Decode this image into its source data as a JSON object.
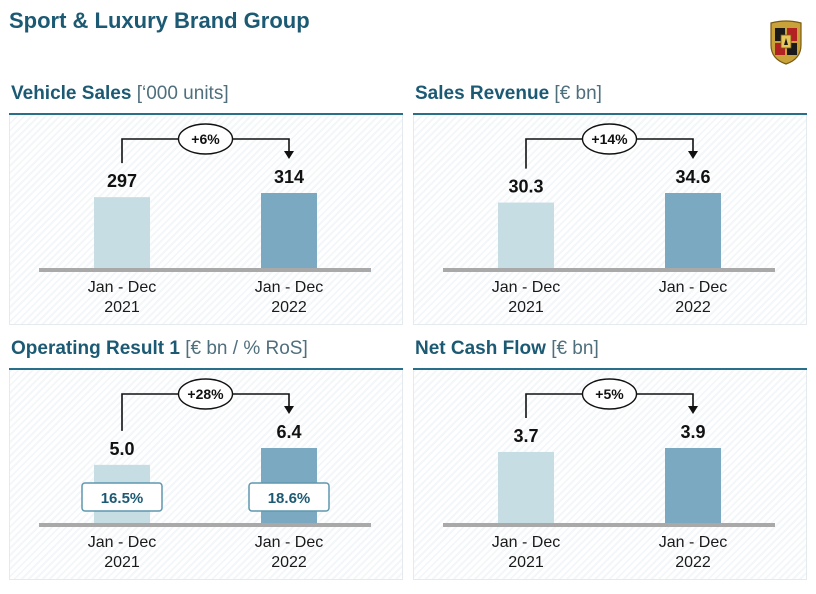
{
  "page": {
    "title": "Sport & Luxury Brand Group"
  },
  "colors": {
    "bar_2021": "#c6dde4",
    "bar_2022": "#7ba9c1",
    "title": "#1c5a74"
  },
  "panels": [
    {
      "title": "Vehicle Sales",
      "superscript": "",
      "unit": "[‘000 units]"
    },
    {
      "title": "Sales Revenue",
      "superscript": "",
      "unit": "[€ bn]"
    },
    {
      "title": "Operating Result",
      "superscript": "1",
      "unit": "[€ bn / % RoS]"
    },
    {
      "title": "Net Cash Flow",
      "superscript": "",
      "unit": "[€ bn]"
    }
  ],
  "chart_data": [
    {
      "type": "bar",
      "title": "Vehicle Sales",
      "unit": "[‘000 units]",
      "categories": [
        [
          "Jan - Dec",
          "2021"
        ],
        [
          "Jan - Dec",
          "2022"
        ]
      ],
      "values": [
        297,
        314
      ],
      "labels": [
        "297",
        "314"
      ],
      "delta": "+6%"
    },
    {
      "type": "bar",
      "title": "Sales Revenue",
      "unit": "[€ bn]",
      "categories": [
        [
          "Jan - Dec",
          "2021"
        ],
        [
          "Jan - Dec",
          "2022"
        ]
      ],
      "values": [
        30.3,
        34.6
      ],
      "labels": [
        "30.3",
        "34.6"
      ],
      "delta": "+14%"
    },
    {
      "type": "bar",
      "title": "Operating Result",
      "unit": "[€ bn / % RoS]",
      "categories": [
        [
          "Jan - Dec",
          "2021"
        ],
        [
          "Jan - Dec",
          "2022"
        ]
      ],
      "values": [
        5.0,
        6.4
      ],
      "labels": [
        "5.0",
        "6.4"
      ],
      "delta": "+28%",
      "ros": [
        "16.5%",
        "18.6%"
      ]
    },
    {
      "type": "bar",
      "title": "Net Cash Flow",
      "unit": "[€ bn]",
      "categories": [
        [
          "Jan - Dec",
          "2021"
        ],
        [
          "Jan - Dec",
          "2022"
        ]
      ],
      "values": [
        3.7,
        3.9
      ],
      "labels": [
        "3.7",
        "3.9"
      ],
      "delta": "+5%"
    }
  ]
}
